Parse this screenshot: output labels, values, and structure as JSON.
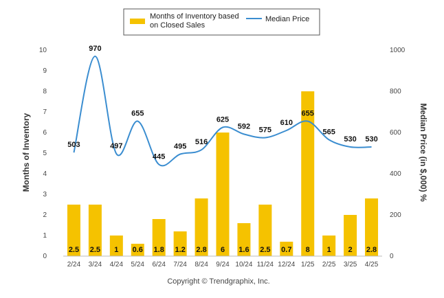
{
  "chart_data": {
    "type": "bar",
    "categories": [
      "2/24",
      "3/24",
      "4/24",
      "5/24",
      "6/24",
      "7/24",
      "8/24",
      "9/24",
      "10/24",
      "11/24",
      "12/24",
      "1/25",
      "2/25",
      "3/25",
      "4/25"
    ],
    "series": [
      {
        "name": "Months of Inventory based on Closed Sales",
        "type": "bar",
        "axis": "left",
        "values": [
          2.5,
          2.5,
          1,
          0.6,
          1.8,
          1.2,
          2.8,
          6,
          1.6,
          2.5,
          0.7,
          8,
          1,
          2,
          2.8
        ],
        "labels": [
          "2.5",
          "2.5",
          "1",
          "0.6",
          "1.8",
          "1.2",
          "2.8",
          "6",
          "1.6",
          "2.5",
          "0.7",
          "8",
          "1",
          "2",
          "2.8"
        ],
        "color": "#F5C200"
      },
      {
        "name": "Median Price",
        "type": "line",
        "axis": "right",
        "values": [
          503,
          970,
          497,
          655,
          445,
          495,
          516,
          625,
          592,
          575,
          610,
          655,
          565,
          530,
          530
        ],
        "labels": [
          "503",
          "970",
          "497",
          "655",
          "445",
          "495",
          "516",
          "625",
          "592",
          "575",
          "610",
          "655",
          "565",
          "530",
          "530"
        ],
        "color": "#3A8DD0"
      }
    ],
    "legend_items": [
      "Months of Inventory based",
      "on Closed Sales",
      "Median Price"
    ],
    "ylabel": "Months of Inventory",
    "y2label": "Median Price (in $,000) %",
    "ylim": [
      0,
      10
    ],
    "yticks": [
      "0",
      "1",
      "2",
      "3",
      "4",
      "5",
      "6",
      "7",
      "8",
      "9",
      "10"
    ],
    "y2lim": [
      0,
      1000
    ],
    "y2ticks": [
      "0",
      "200",
      "400",
      "600",
      "800",
      "1000"
    ],
    "legend_position": "top-center",
    "grid": false,
    "footer": "Copyright © Trendgraphix, Inc."
  }
}
